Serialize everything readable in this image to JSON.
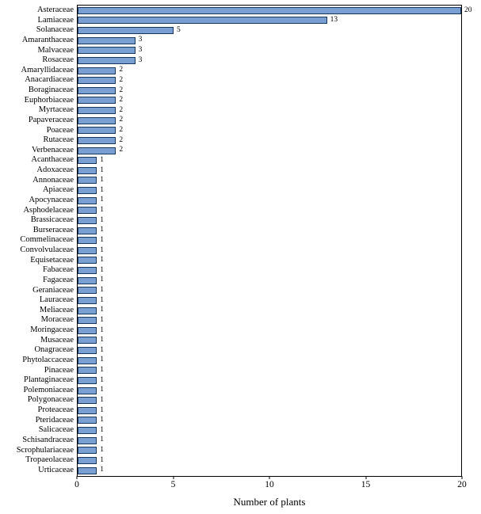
{
  "chart_data": {
    "type": "bar",
    "orientation": "horizontal",
    "title": "",
    "xlabel": "Number of plants",
    "ylabel": "",
    "xlim": [
      0,
      20
    ],
    "x_ticks": [
      "0",
      "5",
      "10",
      "15",
      "20"
    ],
    "x_tick_values": [
      0,
      5,
      10,
      15,
      20
    ],
    "grid": false,
    "legend": "none",
    "bar_fill_color": "#7A9FD2",
    "bar_border_color": "#16365C",
    "categories": [
      "Asteraceae",
      "Lamiaceae",
      "Solanaceae",
      "Amaranthaceae",
      "Malvaceae",
      "Rosaceae",
      "Amaryllidaceae",
      "Anacardiaceae",
      "Boraginaceae",
      "Euphorbiaceae",
      "Myrtaceae",
      "Papaveraceae",
      "Poaceae",
      "Rutaceae",
      "Verbenaceae",
      "Acanthaceae",
      "Adoxaceae",
      "Annonaceae",
      "Apiaceae",
      "Apocynaceae",
      "Asphodelaceae",
      "Brassicaceae",
      "Burseraceae",
      "Commelinaceae",
      "Convolvulaceae",
      "Equisetaceae",
      "Fabaceae",
      "Fagaceae",
      "Geraniaceae",
      "Lauraceae",
      "Meliaceae",
      "Moraceae",
      "Moringaceae",
      "Musaceae",
      "Onagraceae",
      "Phytolaccaceae",
      "Pinaceae",
      "Plantaginaceae",
      "Polemoniaceae",
      "Polygonaceae",
      "Proteaceae",
      "Pteridaceae",
      "Salicaceae",
      "Schisandraceae",
      "Scrophulariaceae",
      "Tropaeolaceae",
      "Urticaceae"
    ],
    "values": [
      20,
      13,
      5,
      3,
      3,
      3,
      2,
      2,
      2,
      2,
      2,
      2,
      2,
      2,
      2,
      1,
      1,
      1,
      1,
      1,
      1,
      1,
      1,
      1,
      1,
      1,
      1,
      1,
      1,
      1,
      1,
      1,
      1,
      1,
      1,
      1,
      1,
      1,
      1,
      1,
      1,
      1,
      1,
      1,
      1,
      1,
      1
    ]
  }
}
